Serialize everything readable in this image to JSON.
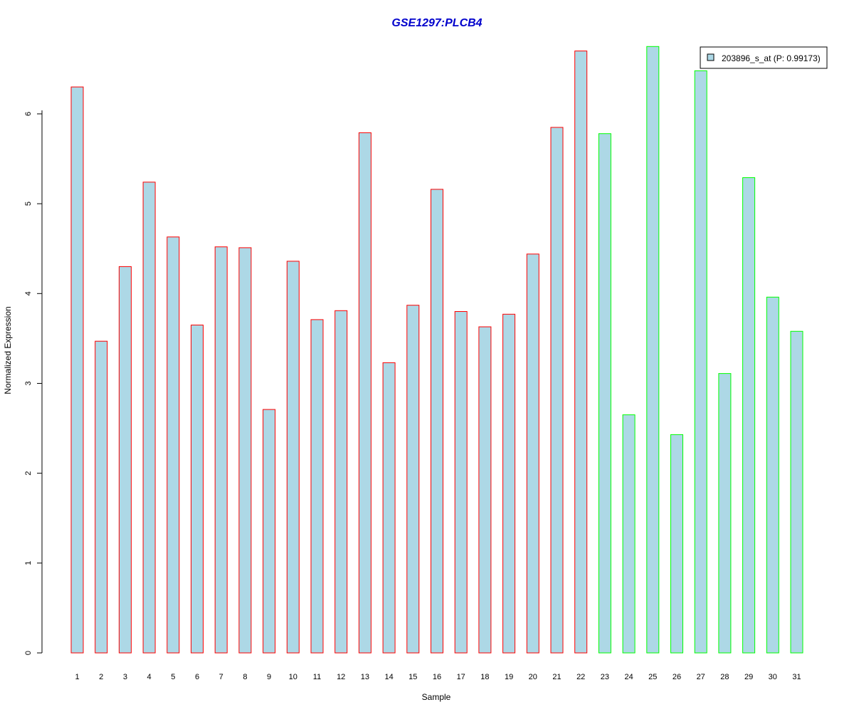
{
  "chart_data": {
    "type": "bar",
    "title": "GSE1297:PLCB4",
    "xlabel": "Sample",
    "ylabel": "Normalized Expression",
    "ylim": [
      0,
      6.8
    ],
    "yticks": [
      0,
      1,
      2,
      3,
      4,
      5,
      6
    ],
    "grid": false,
    "legend_position": "top-right",
    "categories": [
      "1",
      "2",
      "3",
      "4",
      "5",
      "6",
      "7",
      "8",
      "9",
      "10",
      "11",
      "12",
      "13",
      "14",
      "15",
      "16",
      "17",
      "18",
      "19",
      "20",
      "21",
      "22",
      "23",
      "24",
      "25",
      "26",
      "27",
      "28",
      "29",
      "30",
      "31"
    ],
    "series": [
      {
        "name": "203896_s_at (P: 0.99173)",
        "values": [
          6.3,
          3.47,
          4.3,
          5.24,
          4.63,
          3.65,
          4.52,
          4.51,
          2.71,
          4.36,
          3.71,
          3.81,
          5.79,
          3.23,
          3.87,
          5.16,
          3.8,
          3.63,
          3.77,
          4.44,
          5.85,
          6.7,
          5.78,
          2.65,
          6.75,
          2.43,
          6.48,
          3.11,
          5.29,
          3.96,
          3.58
        ]
      }
    ],
    "groups": [
      {
        "samples": "1-22",
        "border_color": "#ff0000"
      },
      {
        "samples": "23-31",
        "border_color": "#00ff00"
      }
    ],
    "bar_fill": "#add8e6",
    "title_color": "#0000cc"
  }
}
